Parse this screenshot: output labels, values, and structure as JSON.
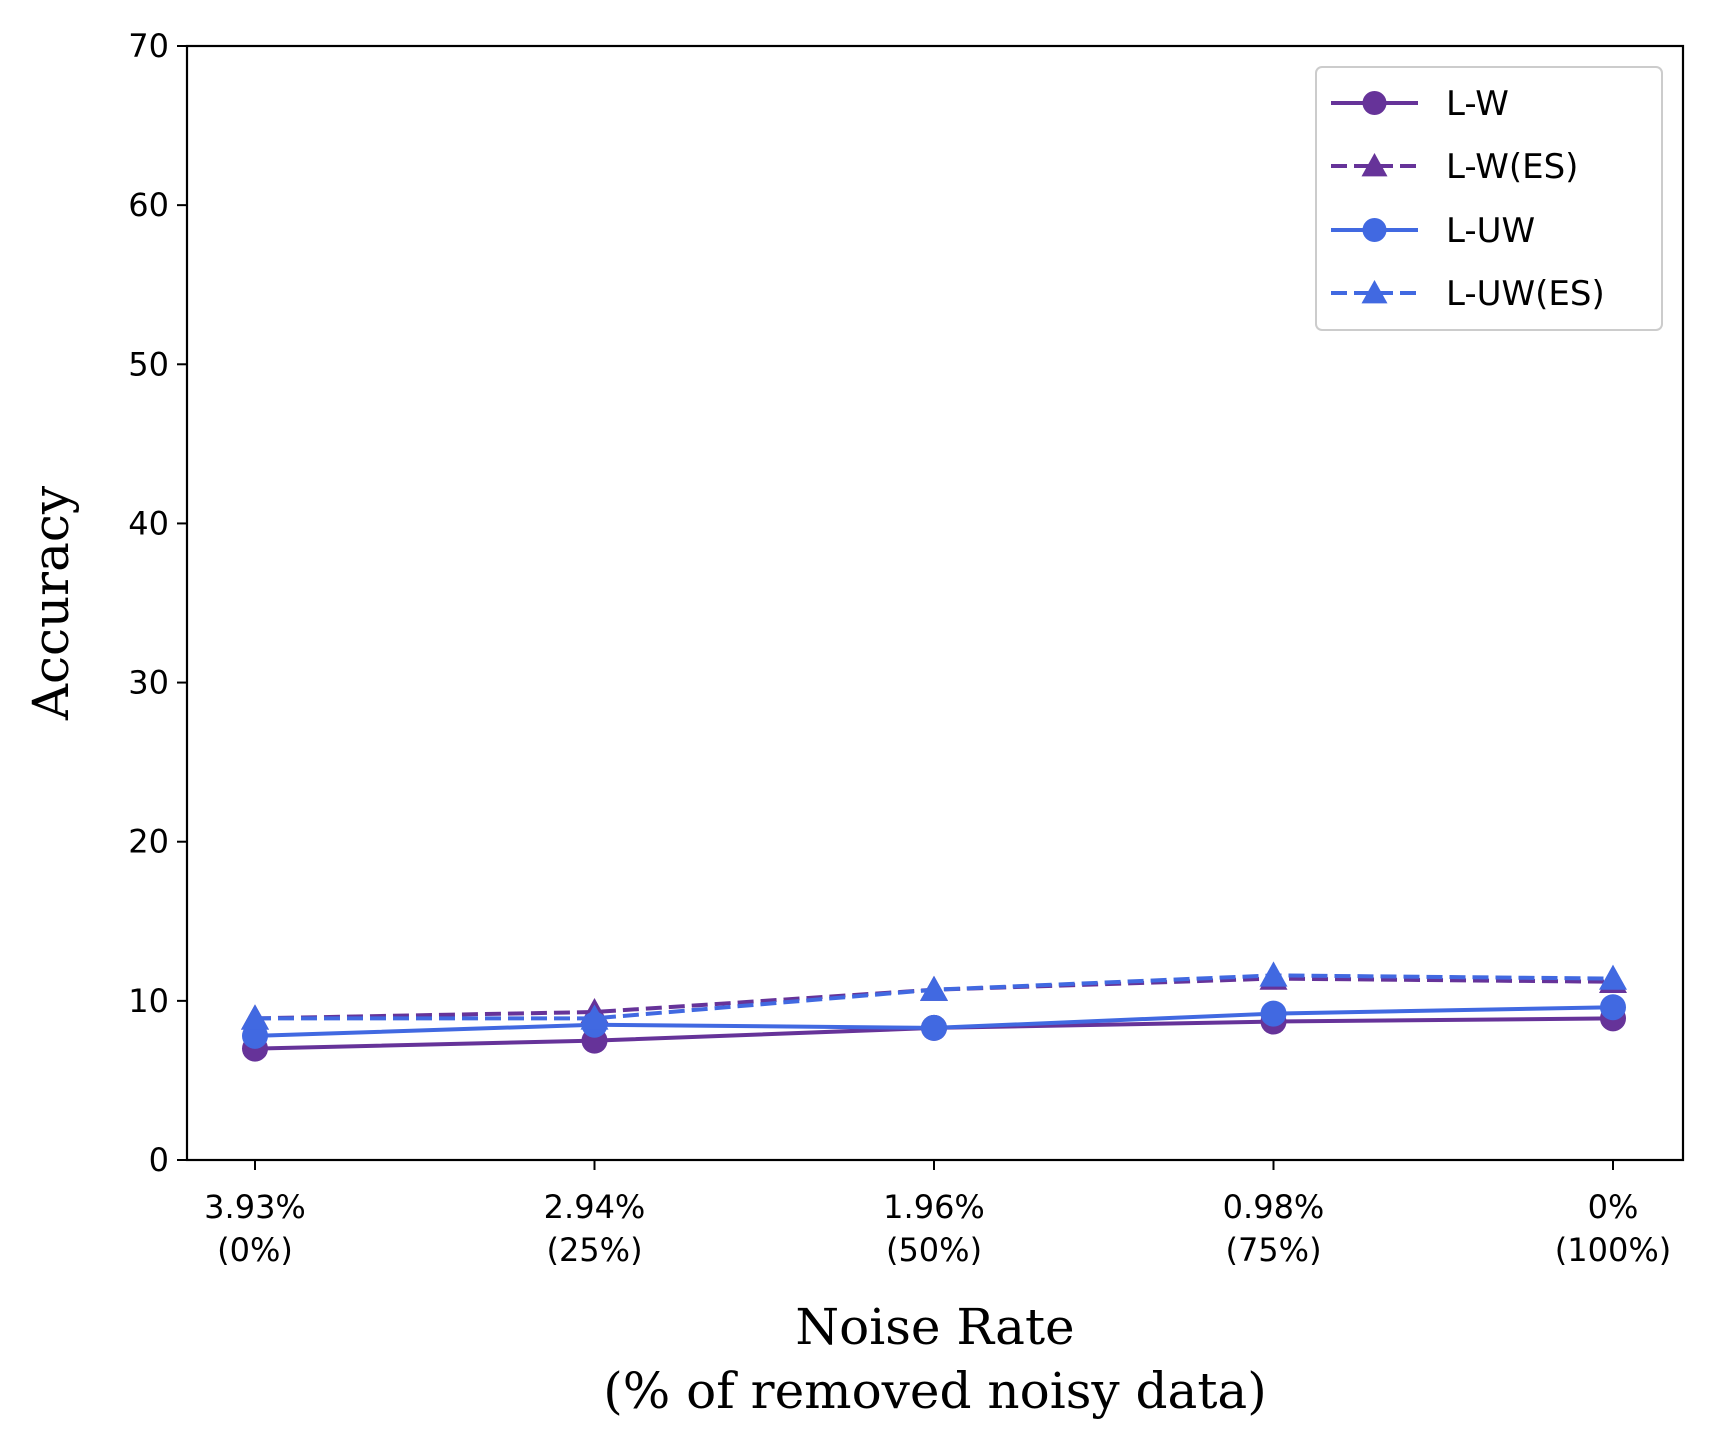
{
  "chart_data": {
    "type": "line",
    "categories": [
      [
        "3.93%",
        "(0%)"
      ],
      [
        "2.94%",
        "(25%)"
      ],
      [
        "1.96%",
        "(50%)"
      ],
      [
        "0.98%",
        "(75%)"
      ],
      [
        "0%",
        "(100%)"
      ]
    ],
    "xlabel": [
      "Noise Rate",
      "(% of removed noisy data)"
    ],
    "ylabel": "Accuracy",
    "ylim": [
      0,
      70
    ],
    "yticks": [
      0,
      10,
      20,
      30,
      40,
      50,
      60,
      70
    ],
    "grid": false,
    "legend_position": "top-right",
    "series": [
      {
        "name": "L-W",
        "color": "#663399",
        "dash": "solid",
        "marker": "circle",
        "values": [
          7.0,
          7.5,
          8.3,
          8.7,
          8.9
        ]
      },
      {
        "name": "L-W(ES)",
        "color": "#663399",
        "dash": "dashed",
        "marker": "triangle",
        "values": [
          8.9,
          9.3,
          10.7,
          11.4,
          11.2
        ]
      },
      {
        "name": "L-UW",
        "color": "#4169E1",
        "dash": "solid",
        "marker": "circle",
        "values": [
          7.8,
          8.5,
          8.3,
          9.2,
          9.6
        ]
      },
      {
        "name": "L-UW(ES)",
        "color": "#4169E1",
        "dash": "dashed",
        "marker": "triangle",
        "values": [
          8.9,
          8.9,
          10.7,
          11.6,
          11.4
        ]
      }
    ]
  }
}
